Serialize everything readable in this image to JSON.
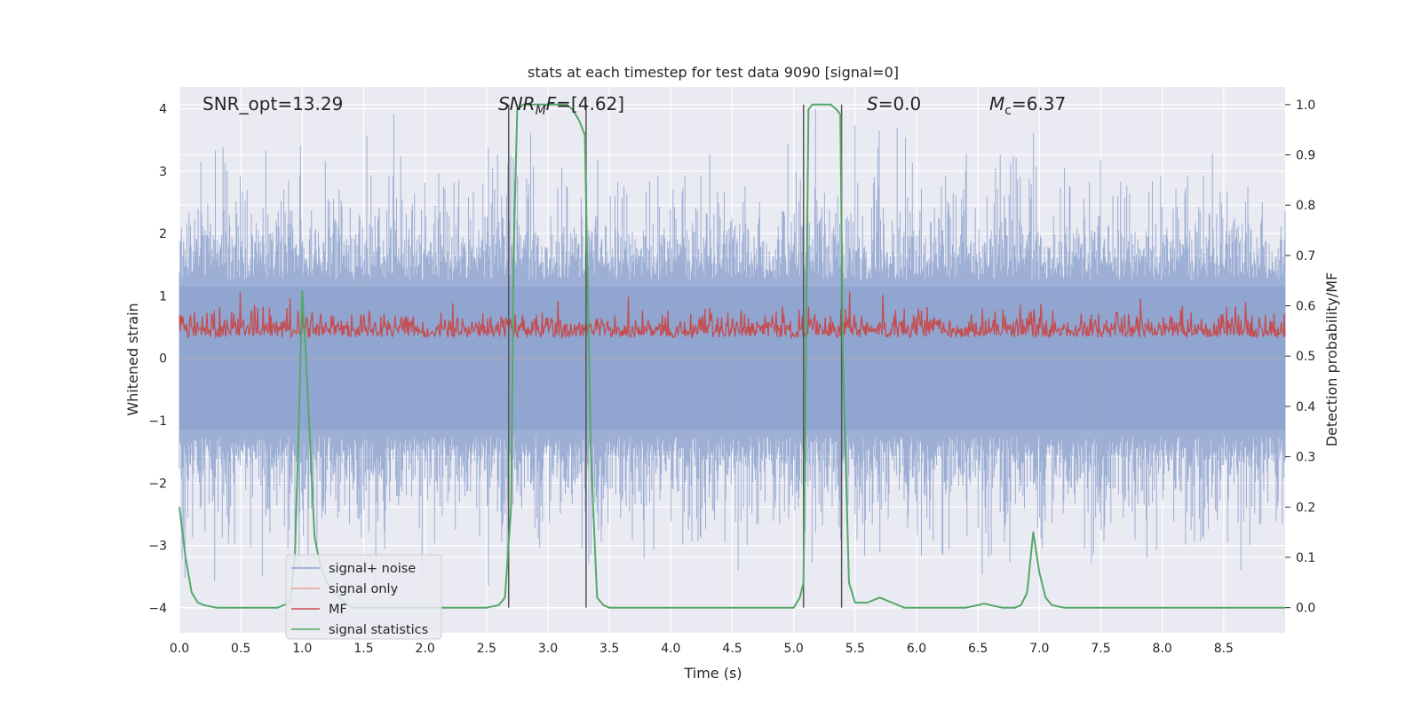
{
  "chart_data": {
    "type": "line",
    "title": "stats at each timestep for test data 9090 [signal=0]",
    "xlabel": "Time (s)",
    "ylabel_left": "Whitened strain",
    "ylabel_right": "Detection probability/MF",
    "xlim": [
      0,
      9.0
    ],
    "ylim_left": [
      -4.4,
      4.35
    ],
    "ylim_right": [
      -0.05,
      1.035
    ],
    "xticks": [
      0.0,
      0.5,
      1.0,
      1.5,
      2.0,
      2.5,
      3.0,
      3.5,
      4.0,
      4.5,
      5.0,
      5.5,
      6.0,
      6.5,
      7.0,
      7.5,
      8.0,
      8.5
    ],
    "xtick_labels": [
      "0.0",
      "0.5",
      "1.0",
      "1.5",
      "2.0",
      "2.5",
      "3.0",
      "3.5",
      "4.0",
      "4.5",
      "5.0",
      "5.5",
      "6.0",
      "6.5",
      "7.0",
      "7.5",
      "8.0",
      "8.5"
    ],
    "yticks_left": [
      4,
      3,
      2,
      1,
      0,
      -1,
      -2,
      -3,
      -4
    ],
    "ytick_labels_left": [
      "4",
      "3",
      "2",
      "1",
      "0",
      "−1",
      "−2",
      "−3",
      "−4"
    ],
    "yticks_right": [
      1.0,
      0.9,
      0.8,
      0.7,
      0.6,
      0.5,
      0.4,
      0.3,
      0.2,
      0.1,
      0.0
    ],
    "ytick_labels_right": [
      "1.0",
      "0.9",
      "0.8",
      "0.7",
      "0.6",
      "0.5",
      "0.4",
      "0.3",
      "0.2",
      "0.1",
      "0.0"
    ],
    "annotations": {
      "snr_opt": "SNR_opt=13.29",
      "snr_mf_main": "SNR",
      "snr_mf_sub": "M",
      "snr_mf_rest": "F",
      "snr_mf_value": "=[4.62]",
      "s_italic": "S",
      "s_value": "=0.0",
      "mc_italic": "M",
      "mc_sub": "c",
      "mc_value": "=6.37"
    },
    "series": [
      {
        "name": "signal+ noise",
        "color": "#8fa5cf",
        "axis": "left",
        "description": "dense whitened noise band, amplitude ~±2.5 with spikes to ±4"
      },
      {
        "name": "signal only",
        "color": "#e8a58a",
        "axis": "left",
        "values_constant": 0
      },
      {
        "name": "MF",
        "color": "#c44e52",
        "axis": "right",
        "range": [
          0.5,
          0.64
        ]
      },
      {
        "name": "signal statistics",
        "color": "#55a868",
        "axis": "right",
        "x": [
          0.0,
          0.05,
          0.1,
          0.15,
          0.2,
          0.3,
          0.4,
          0.6,
          0.8,
          0.9,
          0.94,
          0.97,
          1.0,
          1.03,
          1.06,
          1.1,
          1.15,
          1.2,
          1.3,
          1.4,
          1.5,
          2.0,
          2.5,
          2.6,
          2.65,
          2.7,
          2.72,
          2.75,
          2.8,
          2.9,
          3.0,
          3.1,
          3.15,
          3.2,
          3.25,
          3.3,
          3.35,
          3.4,
          3.45,
          3.5,
          3.6,
          4.0,
          4.5,
          5.0,
          5.05,
          5.08,
          5.1,
          5.12,
          5.15,
          5.2,
          5.3,
          5.35,
          5.38,
          5.4,
          5.45,
          5.5,
          5.6,
          5.7,
          5.75,
          5.8,
          5.9,
          6.2,
          6.4,
          6.5,
          6.55,
          6.6,
          6.7,
          6.8,
          6.85,
          6.9,
          6.95,
          7.0,
          7.05,
          7.1,
          7.2,
          8.0,
          9.0
        ],
        "y": [
          0.2,
          0.1,
          0.03,
          0.01,
          0.005,
          0.0,
          0.0,
          0.0,
          0.0,
          0.01,
          0.1,
          0.35,
          0.63,
          0.5,
          0.35,
          0.14,
          0.08,
          0.05,
          0.02,
          0.0,
          0.0,
          0.0,
          0.0,
          0.005,
          0.02,
          0.2,
          0.7,
          0.99,
          1.0,
          1.0,
          1.0,
          1.0,
          1.0,
          0.99,
          0.97,
          0.94,
          0.3,
          0.02,
          0.005,
          0.0,
          0.0,
          0.0,
          0.0,
          0.0,
          0.02,
          0.05,
          0.5,
          0.99,
          1.0,
          1.0,
          1.0,
          0.99,
          0.98,
          0.5,
          0.05,
          0.01,
          0.01,
          0.02,
          0.015,
          0.01,
          0.0,
          0.0,
          0.0,
          0.005,
          0.008,
          0.005,
          0.0,
          0.0,
          0.005,
          0.03,
          0.15,
          0.07,
          0.02,
          0.005,
          0.0,
          0.0,
          0.0
        ]
      }
    ],
    "vlines": [
      2.68,
      3.31,
      5.08,
      5.39
    ],
    "vline_color": "#555555",
    "legend": {
      "location": "lower-left",
      "entries": [
        "signal+ noise",
        "signal only",
        "MF",
        "signal statistics"
      ]
    },
    "grid": true,
    "background": "#eaeaf2"
  }
}
